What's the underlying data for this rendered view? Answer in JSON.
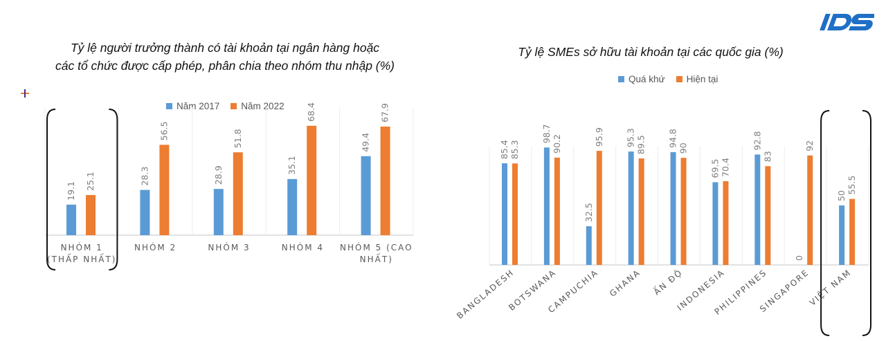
{
  "logo_text": "IDS",
  "colors": {
    "blue": "#5b9bd5",
    "orange": "#ed7d31",
    "grid": "#d9d9d9",
    "label": "#7f7f7f"
  },
  "chart_data": [
    {
      "type": "bar",
      "title": "Tỷ lệ người trưởng thành có tài khoản tại ngân hàng hoặc các tổ chức được cấp phép, phân chia theo nhóm thu nhập (%)",
      "title_line1": "Tỷ lệ người trưởng thành có tài khoản tại ngân hàng hoặc",
      "title_line2": "các tổ chức được cấp phép, phân chia theo nhóm thu nhập (%)",
      "categories": [
        [
          "NHÓM 1",
          "(THẤP NHẤT)"
        ],
        [
          "NHÓM 2"
        ],
        [
          "NHÓM 3"
        ],
        [
          "NHÓM 4"
        ],
        [
          "NHÓM 5 (CAO",
          "NHẤT)"
        ]
      ],
      "series": [
        {
          "name": "Năm 2017",
          "color": "#5b9bd5",
          "values": [
            19.1,
            28.3,
            28.9,
            35.1,
            49.4
          ]
        },
        {
          "name": "Năm 2022",
          "color": "#ed7d31",
          "values": [
            25.1,
            56.5,
            51.8,
            68.4,
            67.9
          ]
        }
      ],
      "ylim": [
        0,
        80
      ],
      "grid": "vertical separators only",
      "legend": "top",
      "highlighted_category": 0
    },
    {
      "type": "bar",
      "title": "Tỷ lệ SMEs sở hữu tài khoản tại các quốc gia (%)",
      "categories": [
        "BANGLADESH",
        "BOTSWANA",
        "CAMPUCHIA",
        "GHANA",
        "ẤN ĐỘ",
        "INDONESIA",
        "PHILIPPINES",
        "SINGAPORE",
        "VIỆT NAM"
      ],
      "series": [
        {
          "name": "Quá khứ",
          "color": "#5b9bd5",
          "values": [
            85.4,
            98.7,
            32.5,
            95.3,
            94.8,
            69.5,
            92.8,
            0,
            50
          ]
        },
        {
          "name": "Hiện tại",
          "color": "#ed7d31",
          "values": [
            85.3,
            90.2,
            95.9,
            89.5,
            90,
            70.4,
            83,
            92,
            55.5
          ]
        }
      ],
      "ylim": [
        0,
        100
      ],
      "grid": "vertical separators only",
      "legend": "top",
      "highlighted_category": 8
    }
  ]
}
